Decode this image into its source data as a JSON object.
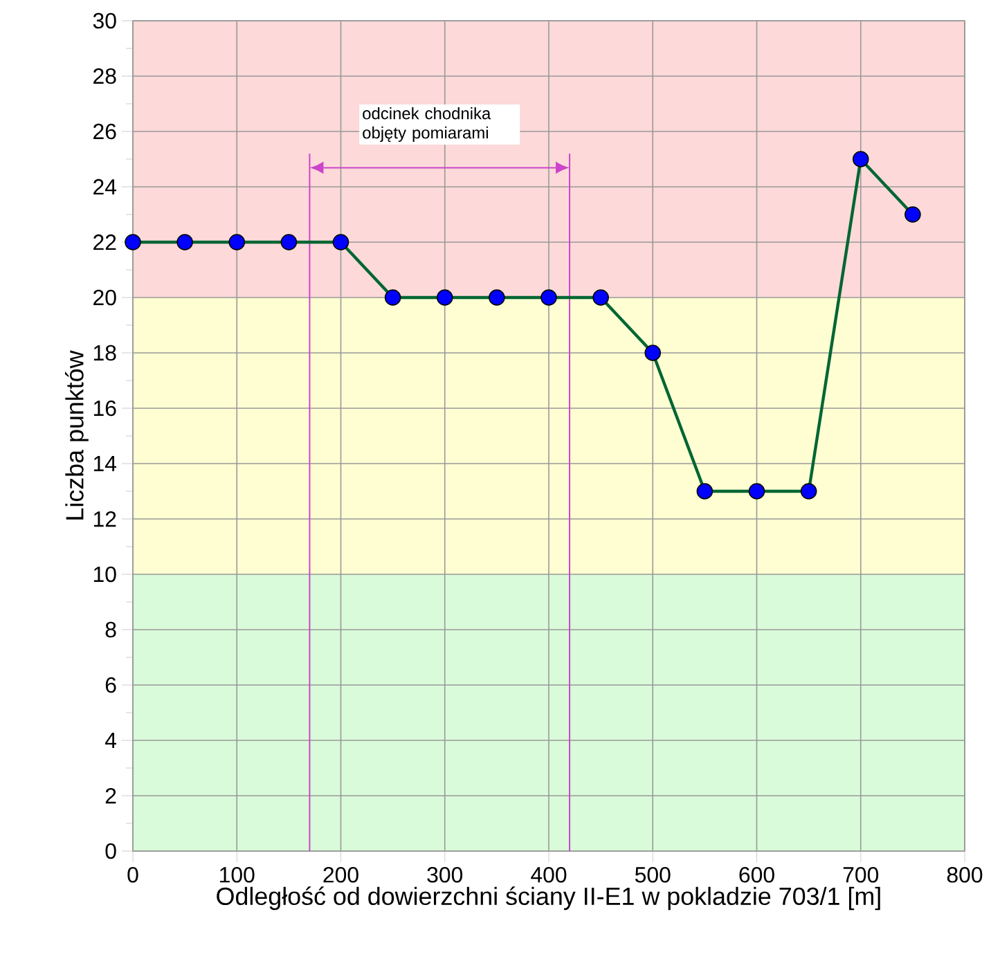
{
  "chart_data": {
    "type": "line",
    "xlabel": "Odległość od dowierzchni ściany II-E1 w pokladzie 703/1 [m]",
    "ylabel": "Liczba punktów",
    "x": [
      0,
      50,
      100,
      150,
      200,
      250,
      300,
      350,
      400,
      450,
      500,
      550,
      600,
      650,
      700,
      750
    ],
    "series": [
      {
        "color": "#006633",
        "values": [
          22,
          22,
          22,
          22,
          22,
          20,
          20,
          20,
          20,
          20,
          18,
          13,
          13,
          13,
          25,
          23
        ]
      }
    ],
    "marker": "circle",
    "line_style": "solid",
    "grid": true,
    "xlim": [
      0,
      800
    ],
    "ylim": [
      0,
      30
    ],
    "xticks": [
      0,
      100,
      200,
      300,
      400,
      500,
      600,
      700,
      800
    ],
    "yticks": [
      0,
      2,
      4,
      6,
      8,
      10,
      12,
      14,
      16,
      18,
      20,
      22,
      24,
      26,
      28,
      30
    ],
    "bands": [
      {
        "axis": "y",
        "from": 0,
        "to": 10,
        "color": "#d9fbd9"
      },
      {
        "axis": "y",
        "from": 10,
        "to": 20,
        "color": "#fefed2"
      },
      {
        "axis": "y",
        "from": 20,
        "to": 30,
        "color": "#fdd9d9"
      }
    ],
    "ref_lines": [
      {
        "axis": "x",
        "value": 170,
        "color": "#cc44cc"
      },
      {
        "axis": "x",
        "value": 420,
        "color": "#cc44cc"
      }
    ],
    "annotations": [
      "odcinek chodnika objęty pomiarami"
    ]
  }
}
